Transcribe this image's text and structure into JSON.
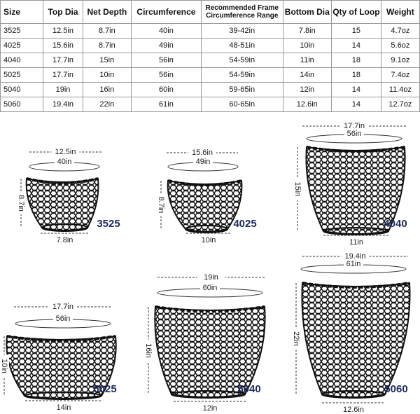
{
  "table": {
    "headers": [
      "Size",
      "Top Dia",
      "Net Depth",
      "Circumference",
      "Recommended Frame Circumference Range",
      "Bottom Dia",
      "Qty of Loop",
      "Weight"
    ],
    "rows": [
      [
        "3525",
        "12.5in",
        "8.7in",
        "40in",
        "39-42in",
        "7.8in",
        "15",
        "4.7oz"
      ],
      [
        "4025",
        "15.6in",
        "8.7in",
        "49in",
        "48-51in",
        "10in",
        "14",
        "5.6oz"
      ],
      [
        "4040",
        "17.7in",
        "15in",
        "56in",
        "54-59in",
        "11in",
        "18",
        "9.1oz"
      ],
      [
        "5025",
        "17.7in",
        "10in",
        "56in",
        "54-59in",
        "14in",
        "18",
        "7.4oz"
      ],
      [
        "5040",
        "19in",
        "16in",
        "60in",
        "59-65in",
        "12in",
        "14",
        "11.4oz"
      ],
      [
        "5060",
        "19.4in",
        "22in",
        "61in",
        "60-65in",
        "12.6in",
        "14",
        "12.7oz"
      ]
    ]
  },
  "diagrams": [
    {
      "model": "3525",
      "top_dia": "12.5in",
      "circumference": "40in",
      "depth": "8.7in",
      "bottom_dia": "7.8in"
    },
    {
      "model": "4025",
      "top_dia": "15.6in",
      "circumference": "49in",
      "depth": "8.7in",
      "bottom_dia": "10in"
    },
    {
      "model": "4040",
      "top_dia": "17.7in",
      "circumference": "56in",
      "depth": "15in",
      "bottom_dia": "11in"
    },
    {
      "model": "5025",
      "top_dia": "17.7in",
      "circumference": "56in",
      "depth": "10in",
      "bottom_dia": "14in"
    },
    {
      "model": "5040",
      "top_dia": "19in",
      "circumference": "60in",
      "depth": "16in",
      "bottom_dia": "12in"
    },
    {
      "model": "5060",
      "top_dia": "19.4in",
      "circumference": "61in",
      "depth": "22in",
      "bottom_dia": "12.6in"
    }
  ]
}
